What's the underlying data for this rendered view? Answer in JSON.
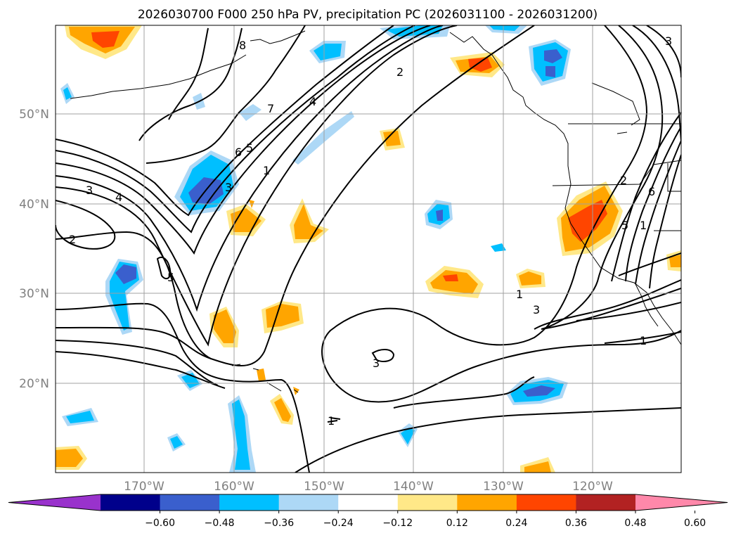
{
  "title": "2026030700 F000 250 hPa PV, precipitation PC (2026031100 - 2026031200)",
  "map": {
    "lat_labels": [
      "50°N",
      "40°N",
      "30°N",
      "20°N"
    ],
    "lon_labels": [
      "170°W",
      "160°W",
      "150°W",
      "140°W",
      "130°W",
      "120°W"
    ],
    "contour_labels": [
      "8",
      "7",
      "4",
      "2",
      "6",
      "5",
      "1",
      "3",
      "3",
      "4",
      "2",
      "5",
      "1",
      "3",
      "1",
      "3",
      "1",
      "2",
      "6",
      "5",
      "1",
      "3"
    ]
  },
  "colorbar": {
    "colors": [
      "#9932cc",
      "#00008b",
      "#3a5fcd",
      "#00bfff",
      "#add8f6",
      "#ffffff",
      "#ffe888",
      "#ffa500",
      "#ff4500",
      "#b22222",
      "#ff88aa"
    ],
    "tick_labels": [
      "−0.60",
      "−0.48",
      "−0.36",
      "−0.24",
      "−0.12",
      "0.12",
      "0.24",
      "0.36",
      "0.48",
      "0.60"
    ]
  }
}
